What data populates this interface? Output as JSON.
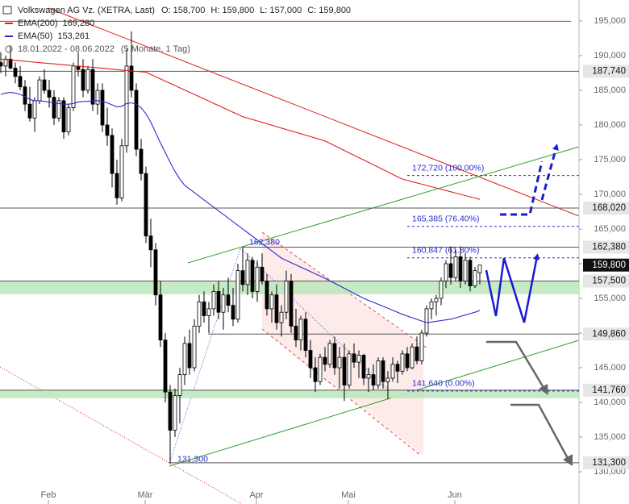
{
  "chart_data": {
    "type": "candlestick",
    "title": "Volkswagen AG Vz. (XETRA, Last)",
    "ohlc_labels": [
      "O: 158,700",
      "H: 159,800",
      "L: 157,000",
      "C: 159,800"
    ],
    "date_range": "18.01.2022 - 08.06.2022",
    "period": "(5 Monate, 1 Tag)",
    "categories": [
      null,
      null,
      null,
      null,
      null,
      null,
      null,
      null,
      null,
      null,
      "Feb",
      null,
      null,
      null,
      null,
      null,
      null,
      null,
      null,
      null,
      null,
      null,
      null,
      null,
      null,
      null,
      null,
      null,
      null,
      null,
      "Mär",
      null,
      null,
      null,
      null,
      null,
      null,
      null,
      null,
      null,
      null,
      null,
      null,
      null,
      null,
      null,
      null,
      null,
      null,
      null,
      null,
      null,
      null,
      "Apr",
      null,
      null,
      null,
      null,
      null,
      null,
      null,
      null,
      null,
      null,
      null,
      null,
      null,
      null,
      null,
      null,
      null,
      null,
      "Mai",
      null,
      null,
      null,
      null,
      null,
      null,
      null,
      null,
      null,
      null,
      null,
      null,
      null,
      null,
      null,
      null,
      null,
      null,
      null,
      null,
      null,
      "Jun",
      null,
      null,
      null,
      null,
      null
    ],
    "open": [
      189000,
      188500,
      189500,
      188200,
      187000,
      185500,
      183000,
      181000,
      183500,
      186500,
      185000,
      184000,
      181000,
      183500,
      179000,
      182500,
      188500,
      188000,
      185000,
      188000,
      183000,
      185000,
      180000,
      178500,
      173000,
      169500,
      177000,
      188500,
      185000,
      176500,
      173000,
      164000,
      162000,
      155500,
      149000,
      141500,
      136000,
      141000,
      144000,
      148500,
      145000,
      151000,
      154500,
      152500,
      153500,
      156000,
      153000,
      155500,
      154000,
      152000,
      159000,
      157000,
      160500,
      156000,
      159500,
      157500,
      153500,
      155500,
      151500,
      153000,
      157500,
      151000,
      149000,
      152000,
      147500,
      145000,
      143000,
      146500,
      145500,
      148500,
      145000,
      146500,
      142500,
      147000,
      145800,
      146800,
      143500,
      144000,
      142500,
      146000,
      143000,
      143500,
      145500,
      144500,
      147000,
      145000,
      148000,
      146000,
      150000,
      153500,
      154500,
      155000,
      157500,
      160000,
      158000,
      161000,
      157500,
      160500,
      156800,
      158700
    ],
    "high": [
      190500,
      190000,
      191500,
      189000,
      188500,
      186500,
      185500,
      184000,
      187000,
      188000,
      186500,
      185000,
      184000,
      184000,
      183000,
      189000,
      190500,
      189500,
      188500,
      189500,
      186000,
      186000,
      182500,
      179500,
      175000,
      178000,
      191000,
      193500,
      186000,
      178000,
      174000,
      166500,
      163000,
      157500,
      150000,
      142500,
      142000,
      145000,
      149500,
      150500,
      152000,
      155500,
      156000,
      154500,
      157000,
      157500,
      156500,
      158000,
      156500,
      160000,
      162380,
      161500,
      161000,
      160500,
      161500,
      158500,
      156000,
      157000,
      154000,
      159000,
      158500,
      153500,
      152500,
      153000,
      149000,
      146500,
      147000,
      148000,
      149000,
      149500,
      148000,
      148500,
      147500,
      148500,
      147500,
      147000,
      145000,
      145500,
      146500,
      146500,
      144500,
      146500,
      146000,
      147500,
      148000,
      148500,
      149500,
      150500,
      154000,
      155000,
      155500,
      158000,
      160500,
      162500,
      162000,
      162500,
      161500,
      161000,
      159500,
      159800
    ],
    "low": [
      187500,
      187000,
      188000,
      186000,
      185000,
      182000,
      180500,
      179000,
      183000,
      184500,
      182500,
      180000,
      180500,
      178000,
      178500,
      182000,
      187000,
      184000,
      184500,
      182000,
      181500,
      179000,
      177000,
      171000,
      168500,
      169000,
      176000,
      184000,
      175500,
      172000,
      163000,
      159500,
      154000,
      148000,
      140000,
      131300,
      135000,
      137000,
      142500,
      144000,
      144500,
      150000,
      151500,
      150000,
      152500,
      152000,
      150500,
      153000,
      151000,
      151500,
      156000,
      155500,
      155000,
      154500,
      157000,
      152500,
      151500,
      150500,
      149500,
      152000,
      150000,
      148000,
      147500,
      146500,
      143500,
      141500,
      142500,
      144500,
      145000,
      144000,
      142000,
      140200,
      142000,
      145000,
      143500,
      142500,
      141500,
      141800,
      142000,
      142000,
      140500,
      143000,
      142800,
      144000,
      144500,
      144800,
      145500,
      145500,
      149500,
      152000,
      152500,
      154000,
      156500,
      157000,
      157500,
      156500,
      157000,
      156000,
      156500,
      157000
    ],
    "close": [
      188500,
      189500,
      188200,
      187000,
      185500,
      183000,
      181000,
      183500,
      186500,
      185000,
      184000,
      181000,
      183500,
      179000,
      182500,
      188500,
      188000,
      185000,
      188000,
      183000,
      185000,
      180000,
      178500,
      173000,
      169500,
      177000,
      188500,
      185000,
      176500,
      173000,
      164000,
      162000,
      155500,
      149000,
      141500,
      136000,
      141000,
      144000,
      148500,
      145000,
      151000,
      154500,
      152500,
      153500,
      156000,
      153000,
      155500,
      154000,
      152000,
      159000,
      157000,
      160500,
      156000,
      159500,
      157500,
      153500,
      155500,
      151500,
      153000,
      157500,
      151000,
      149000,
      152000,
      147500,
      145000,
      143000,
      146500,
      145500,
      148500,
      145000,
      146500,
      142500,
      147000,
      145800,
      146800,
      143500,
      144000,
      142500,
      146000,
      143000,
      143500,
      145500,
      144500,
      147000,
      145000,
      148000,
      146000,
      150000,
      153500,
      154500,
      155000,
      157500,
      160000,
      158000,
      161000,
      157500,
      160500,
      156800,
      159000,
      159800
    ],
    "candle_colors": {
      "up": "#ffffff",
      "down": "#000000"
    },
    "series": [
      {
        "name": "EMA(200)",
        "value_label": "169,280",
        "color": "#e0201c",
        "values": [
          189500,
          189440,
          189380,
          189310,
          189250,
          189180,
          189120,
          189060,
          188990,
          188930,
          188870,
          188810,
          188740,
          188680,
          188620,
          188550,
          188490,
          188430,
          188370,
          188300,
          188240,
          188180,
          188110,
          188050,
          187990,
          187920,
          187860,
          187800,
          187730,
          187670,
          187600,
          187280,
          186960,
          186640,
          186320,
          186000,
          185680,
          185360,
          185040,
          184720,
          184400,
          184080,
          183760,
          183440,
          183120,
          182800,
          182480,
          182160,
          181840,
          181520,
          181200,
          180990,
          180790,
          180580,
          180380,
          180170,
          179970,
          179760,
          179560,
          179350,
          179150,
          178940,
          178740,
          178530,
          178330,
          178120,
          177920,
          177700,
          177360,
          177010,
          176670,
          176320,
          175980,
          175640,
          175290,
          174950,
          174600,
          174260,
          173920,
          173570,
          173230,
          172880,
          172540,
          172200,
          172020,
          171830,
          171650,
          171470,
          171290,
          171100,
          170920,
          170740,
          170560,
          170370,
          170190,
          170010,
          169830,
          169640,
          169460,
          169280
        ]
      },
      {
        "name": "EMA(50)",
        "value_label": "153,261",
        "color": "#2b2bd6",
        "values": [
          184400,
          184600,
          184700,
          184600,
          184400,
          184100,
          183700,
          183500,
          183500,
          183400,
          183300,
          183200,
          183100,
          183000,
          183000,
          183100,
          183300,
          183400,
          183400,
          183500,
          183500,
          183400,
          183200,
          182900,
          182600,
          182700,
          183100,
          183200,
          183000,
          182500,
          181600,
          180400,
          178900,
          177400,
          176000,
          174600,
          173300,
          172200,
          171300,
          170780,
          170250,
          169730,
          169200,
          168680,
          168150,
          167630,
          167100,
          166580,
          166050,
          165530,
          165000,
          164480,
          163950,
          163430,
          162900,
          162380,
          161850,
          161330,
          160800,
          160480,
          160150,
          159830,
          159510,
          159190,
          158860,
          158540,
          158220,
          157900,
          157540,
          157180,
          156810,
          156450,
          156090,
          155720,
          155360,
          155000,
          154710,
          154430,
          154140,
          153860,
          153570,
          153280,
          153000,
          152700,
          152460,
          152220,
          151980,
          151740,
          151500,
          151600,
          151700,
          151800,
          151900,
          152000,
          152200,
          152400,
          152600,
          152800,
          153000,
          153261
        ]
      }
    ],
    "ylim": [
      128260,
      198020
    ],
    "yticks": [
      {
        "value": 195000,
        "label": "195,000"
      },
      {
        "value": 190000,
        "label": "190,000"
      },
      {
        "value": 185000,
        "label": "185,000"
      },
      {
        "value": 180000,
        "label": "180,000"
      },
      {
        "value": 175000,
        "label": "175,000"
      },
      {
        "value": 170000,
        "label": "170,000"
      },
      {
        "value": 165000,
        "label": "165,000"
      },
      {
        "value": 160000,
        "label": "160,000"
      },
      {
        "value": 155000,
        "label": "155,000"
      },
      {
        "value": 150000,
        "label": "150,000"
      },
      {
        "value": 145000,
        "label": "145,000"
      },
      {
        "value": 140000,
        "label": "140,000"
      },
      {
        "value": 135000,
        "label": "135,000"
      },
      {
        "value": 130000,
        "label": "130,000"
      }
    ],
    "red_line_level": 194950,
    "zones": [
      [
        155600,
        157500
      ],
      [
        140600,
        141760
      ]
    ],
    "levels": [
      {
        "value": 187740,
        "label": "187,740"
      },
      {
        "value": 168020,
        "label": "168,020"
      },
      {
        "value": 162380,
        "label": "162,380"
      },
      {
        "value": 157500,
        "label": "157,500"
      },
      {
        "value": 149860,
        "label": "149,860"
      },
      {
        "value": 141760,
        "label": "141,760"
      },
      {
        "value": 131300,
        "label": "131,300"
      }
    ],
    "last_price": {
      "value": 159800,
      "label": "159,800"
    },
    "fibonacci": [
      {
        "value": 172720,
        "label": "172,720 (100.00%)"
      },
      {
        "value": 165385,
        "label": "165,385 (76.40%)"
      },
      {
        "value": 160847,
        "label": "160,847 (61.80%)"
      },
      {
        "value": 141640,
        "label": "141,640 (0.00%)"
      }
    ],
    "annotations": [
      {
        "value": 162380,
        "label": "162,380"
      },
      {
        "value": 131300,
        "label": "131,300"
      }
    ]
  }
}
